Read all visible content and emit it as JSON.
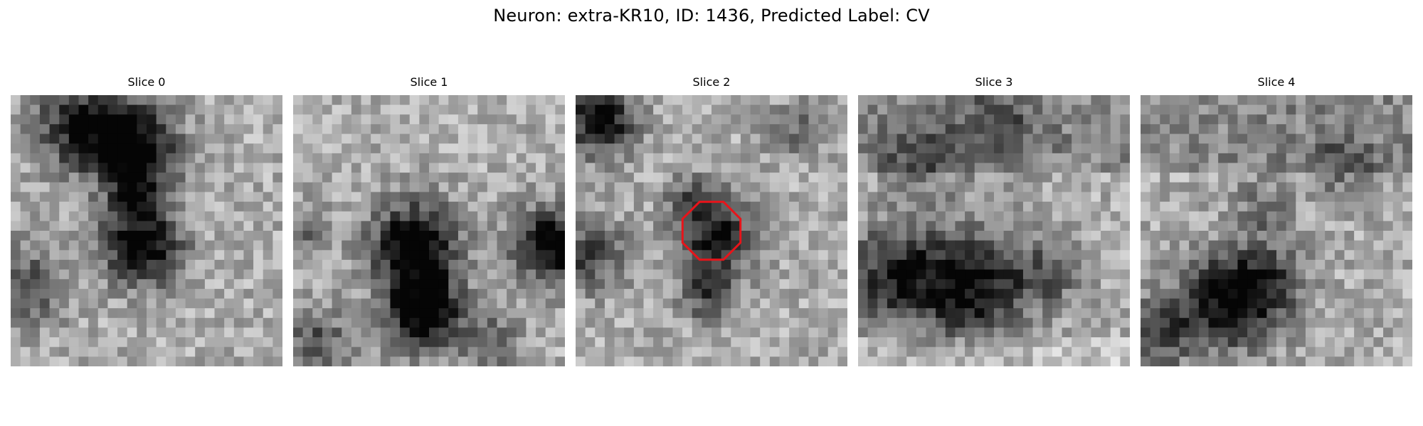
{
  "figure": {
    "title": "Neuron: extra-KR10, ID: 1436, Predicted Label: CV",
    "colormap": "gray",
    "highlight_color": "#e8141a",
    "slices": [
      {
        "title": "Slice 0",
        "highlight": false
      },
      {
        "title": "Slice 1",
        "highlight": false
      },
      {
        "title": "Slice 2",
        "highlight": true
      },
      {
        "title": "Slice 3",
        "highlight": false
      },
      {
        "title": "Slice 4",
        "highlight": false
      }
    ]
  }
}
